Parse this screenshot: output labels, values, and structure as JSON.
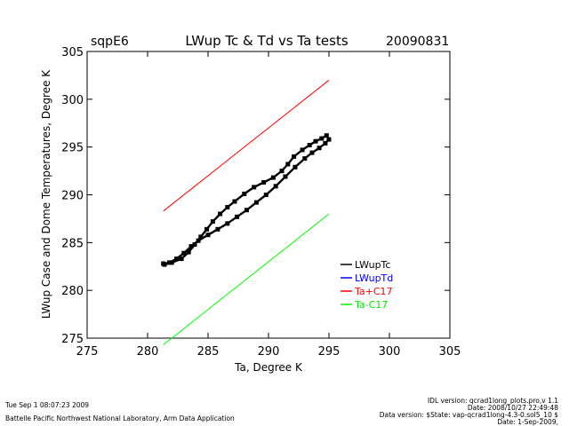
{
  "header": {
    "site": "sqpE6",
    "title": "LWup Tc & Td vs Ta tests",
    "date": "20090831"
  },
  "chart_data": {
    "type": "scatter",
    "title": "LWup Tc & Td vs Ta tests",
    "xlabel": "Ta, Degree K",
    "ylabel": "LWup Case and Dome Temperatures, Degree K",
    "xlim": [
      275,
      305
    ],
    "ylim": [
      275,
      305
    ],
    "xticks": [
      "275",
      "280",
      "285",
      "290",
      "295",
      "300",
      "305"
    ],
    "yticks": [
      "275",
      "280",
      "285",
      "290",
      "295",
      "300",
      "305"
    ],
    "grid": false,
    "legend_position": "bottom-right",
    "series": [
      {
        "name": "LWupTc",
        "color": "#000000",
        "style": "points",
        "points": [
          [
            281.3,
            282.8
          ],
          [
            281.8,
            282.9
          ],
          [
            282.4,
            283.3
          ],
          [
            283.0,
            283.9
          ],
          [
            283.6,
            284.6
          ],
          [
            284.2,
            285.2
          ],
          [
            285.0,
            285.8
          ],
          [
            285.8,
            286.4
          ],
          [
            286.6,
            287.0
          ],
          [
            287.4,
            287.7
          ],
          [
            288.2,
            288.4
          ],
          [
            289.0,
            289.2
          ],
          [
            289.8,
            290.0
          ],
          [
            290.6,
            290.9
          ],
          [
            291.4,
            291.9
          ],
          [
            292.2,
            292.9
          ],
          [
            293.0,
            293.8
          ],
          [
            293.6,
            294.4
          ],
          [
            294.2,
            294.9
          ],
          [
            294.7,
            295.4
          ],
          [
            295.0,
            295.8
          ],
          [
            294.8,
            296.2
          ],
          [
            294.4,
            295.9
          ],
          [
            293.9,
            295.6
          ],
          [
            293.4,
            295.2
          ],
          [
            292.8,
            294.7
          ],
          [
            292.1,
            294.0
          ],
          [
            291.6,
            293.2
          ],
          [
            291.1,
            292.5
          ],
          [
            290.4,
            291.8
          ],
          [
            289.6,
            291.3
          ],
          [
            288.8,
            290.8
          ],
          [
            288.0,
            290.1
          ],
          [
            287.2,
            289.3
          ],
          [
            286.6,
            288.7
          ],
          [
            286.0,
            288.0
          ],
          [
            285.4,
            287.2
          ],
          [
            284.9,
            286.4
          ],
          [
            284.4,
            285.6
          ],
          [
            283.9,
            284.8
          ],
          [
            283.4,
            284.0
          ],
          [
            282.8,
            283.3
          ],
          [
            282.0,
            282.9
          ],
          [
            281.4,
            282.7
          ]
        ]
      },
      {
        "name": "LWupTd",
        "color": "#0000ff",
        "style": "points",
        "points": []
      },
      {
        "name": "Ta+C17",
        "color": "#ff0000",
        "style": "line",
        "points": [
          [
            281.3,
            288.3
          ],
          [
            295.0,
            302.0
          ]
        ]
      },
      {
        "name": "Ta-C17",
        "color": "#00ff00",
        "style": "line",
        "points": [
          [
            281.3,
            274.3
          ],
          [
            295.0,
            288.0
          ]
        ]
      }
    ]
  },
  "footer": {
    "timestamp": "Tue Sep  1 08:07:23 2009",
    "institution": "Battelle Pacific Northwest National Laboratory, Arm Data Application",
    "idl_version": "IDL version: qcrad1long_plots.pro,v 1.1",
    "idl_date": "Date: 2008/10/27 22:49:48",
    "data_version": "Data version: $State: vap-qcrad1long-4.3-0.sol5_10 $",
    "data_date": "Date: 1-Sep-2009,"
  }
}
